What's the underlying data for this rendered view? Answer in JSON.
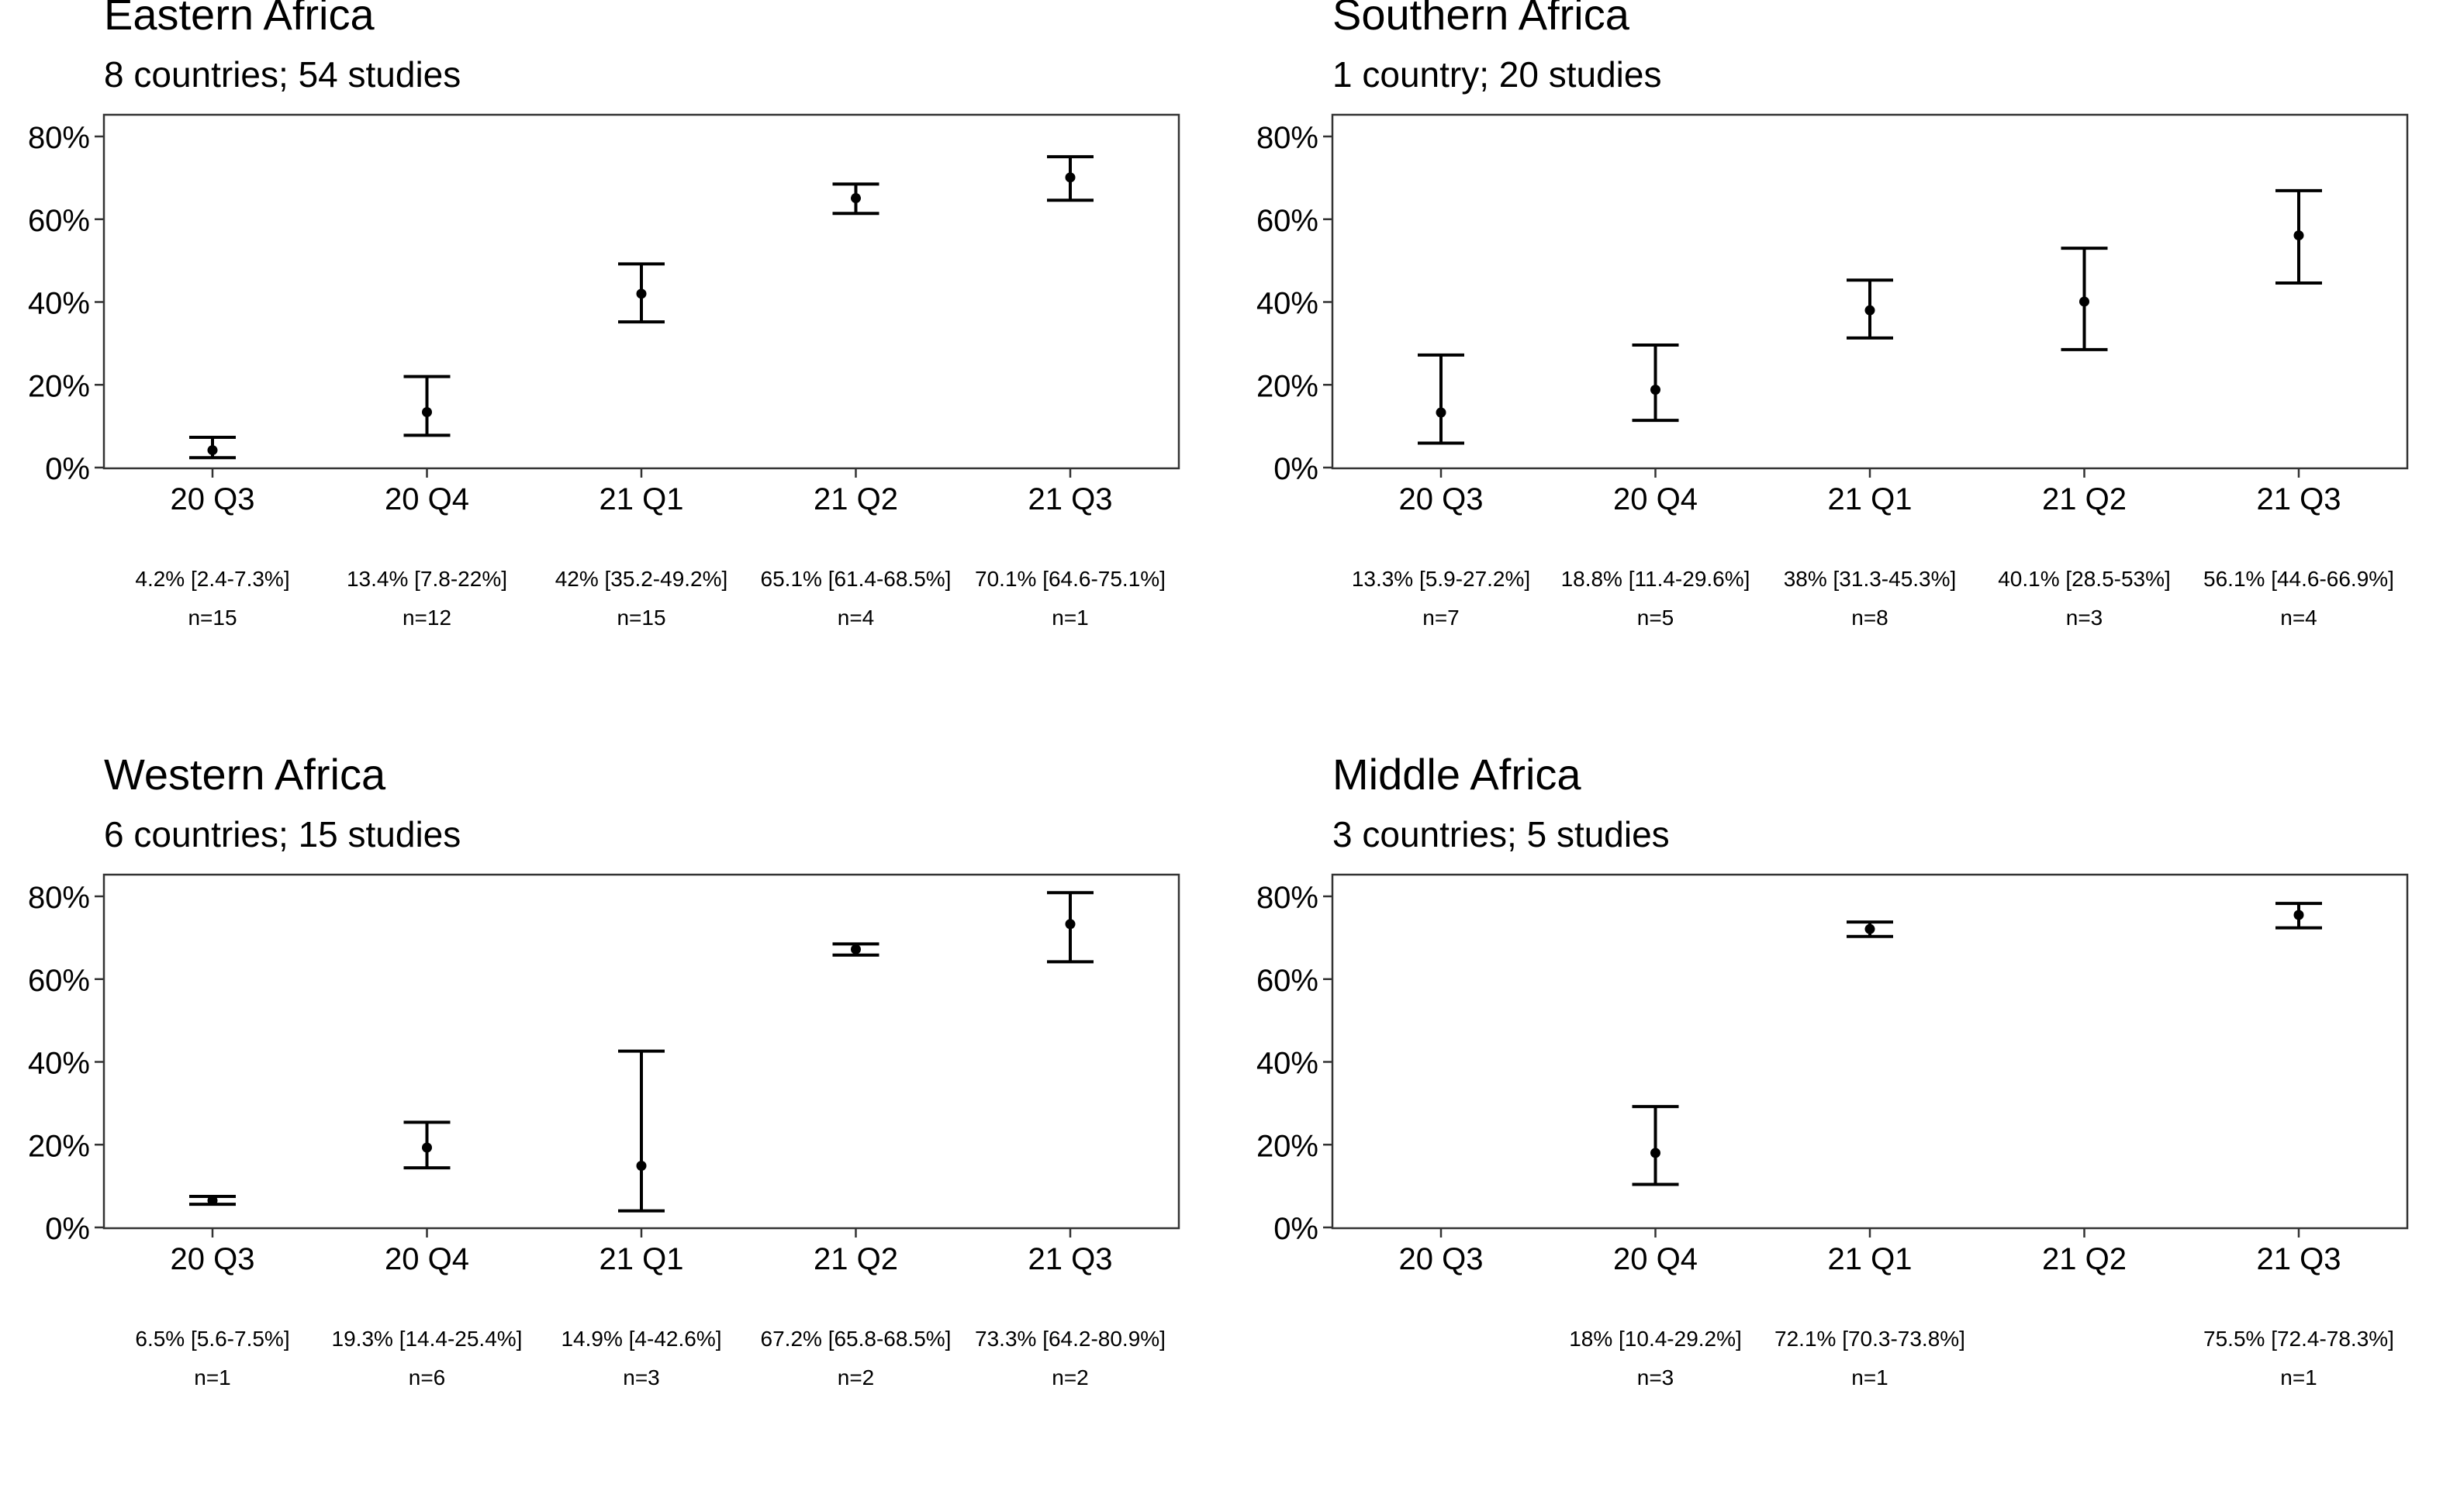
{
  "chart_data": [
    {
      "type": "errorbar",
      "title": "Eastern Africa",
      "subtitle": "8 countries; 54 studies",
      "categories": [
        "20 Q3",
        "20 Q4",
        "21 Q1",
        "21 Q2",
        "21 Q3"
      ],
      "ylim": [
        0,
        0.85
      ],
      "yticks": [
        0,
        0.2,
        0.4,
        0.6,
        0.8
      ],
      "ytick_labels": [
        "0%",
        "20%",
        "40%",
        "60%",
        "80%"
      ],
      "points": [
        {
          "est": 0.042,
          "lo": 0.024,
          "hi": 0.073,
          "label": "4.2% [2.4-7.3%]",
          "n": "n=15"
        },
        {
          "est": 0.134,
          "lo": 0.078,
          "hi": 0.22,
          "label": "13.4% [7.8-22%]",
          "n": "n=12"
        },
        {
          "est": 0.42,
          "lo": 0.352,
          "hi": 0.492,
          "label": "42% [35.2-49.2%]",
          "n": "n=15"
        },
        {
          "est": 0.651,
          "lo": 0.614,
          "hi": 0.685,
          "label": "65.1% [61.4-68.5%]",
          "n": "n=4"
        },
        {
          "est": 0.701,
          "lo": 0.646,
          "hi": 0.751,
          "label": "70.1% [64.6-75.1%]",
          "n": "n=1"
        }
      ]
    },
    {
      "type": "errorbar",
      "title": "Southern Africa",
      "subtitle": "1 country; 20 studies",
      "categories": [
        "20 Q3",
        "20 Q4",
        "21 Q1",
        "21 Q2",
        "21 Q3"
      ],
      "ylim": [
        0,
        0.85
      ],
      "yticks": [
        0,
        0.2,
        0.4,
        0.6,
        0.8
      ],
      "ytick_labels": [
        "0%",
        "20%",
        "40%",
        "60%",
        "80%"
      ],
      "points": [
        {
          "est": 0.133,
          "lo": 0.059,
          "hi": 0.272,
          "label": "13.3% [5.9-27.2%]",
          "n": "n=7"
        },
        {
          "est": 0.188,
          "lo": 0.114,
          "hi": 0.296,
          "label": "18.8% [11.4-29.6%]",
          "n": "n=5"
        },
        {
          "est": 0.38,
          "lo": 0.313,
          "hi": 0.453,
          "label": "38% [31.3-45.3%]",
          "n": "n=8"
        },
        {
          "est": 0.401,
          "lo": 0.285,
          "hi": 0.53,
          "label": "40.1% [28.5-53%]",
          "n": "n=3"
        },
        {
          "est": 0.561,
          "lo": 0.446,
          "hi": 0.669,
          "label": "56.1% [44.6-66.9%]",
          "n": "n=4"
        }
      ]
    },
    {
      "type": "errorbar",
      "title": "Western Africa",
      "subtitle": "6 countries; 15 studies",
      "categories": [
        "20 Q3",
        "20 Q4",
        "21 Q1",
        "21 Q2",
        "21 Q3"
      ],
      "ylim": [
        0,
        0.85
      ],
      "yticks": [
        0,
        0.2,
        0.4,
        0.6,
        0.8
      ],
      "ytick_labels": [
        "0%",
        "20%",
        "40%",
        "60%",
        "80%"
      ],
      "points": [
        {
          "est": 0.065,
          "lo": 0.056,
          "hi": 0.075,
          "label": "6.5% [5.6-7.5%]",
          "n": "n=1"
        },
        {
          "est": 0.193,
          "lo": 0.144,
          "hi": 0.254,
          "label": "19.3% [14.4-25.4%]",
          "n": "n=6"
        },
        {
          "est": 0.149,
          "lo": 0.04,
          "hi": 0.426,
          "label": "14.9% [4-42.6%]",
          "n": "n=3"
        },
        {
          "est": 0.672,
          "lo": 0.658,
          "hi": 0.685,
          "label": "67.2% [65.8-68.5%]",
          "n": "n=2"
        },
        {
          "est": 0.733,
          "lo": 0.642,
          "hi": 0.809,
          "label": "73.3% [64.2-80.9%]",
          "n": "n=2"
        }
      ]
    },
    {
      "type": "errorbar",
      "title": "Middle Africa",
      "subtitle": "3 countries; 5 studies",
      "categories": [
        "20 Q3",
        "20 Q4",
        "21 Q1",
        "21 Q2",
        "21 Q3"
      ],
      "ylim": [
        0,
        0.85
      ],
      "yticks": [
        0,
        0.2,
        0.4,
        0.6,
        0.8
      ],
      "ytick_labels": [
        "0%",
        "20%",
        "40%",
        "60%",
        "80%"
      ],
      "points": [
        null,
        {
          "est": 0.18,
          "lo": 0.104,
          "hi": 0.292,
          "label": "18% [10.4-29.2%]",
          "n": "n=3"
        },
        {
          "est": 0.721,
          "lo": 0.703,
          "hi": 0.738,
          "label": "72.1% [70.3-73.8%]",
          "n": "n=1"
        },
        null,
        {
          "est": 0.755,
          "lo": 0.724,
          "hi": 0.783,
          "label": "75.5% [72.4-78.3%]",
          "n": "n=1"
        }
      ]
    }
  ]
}
